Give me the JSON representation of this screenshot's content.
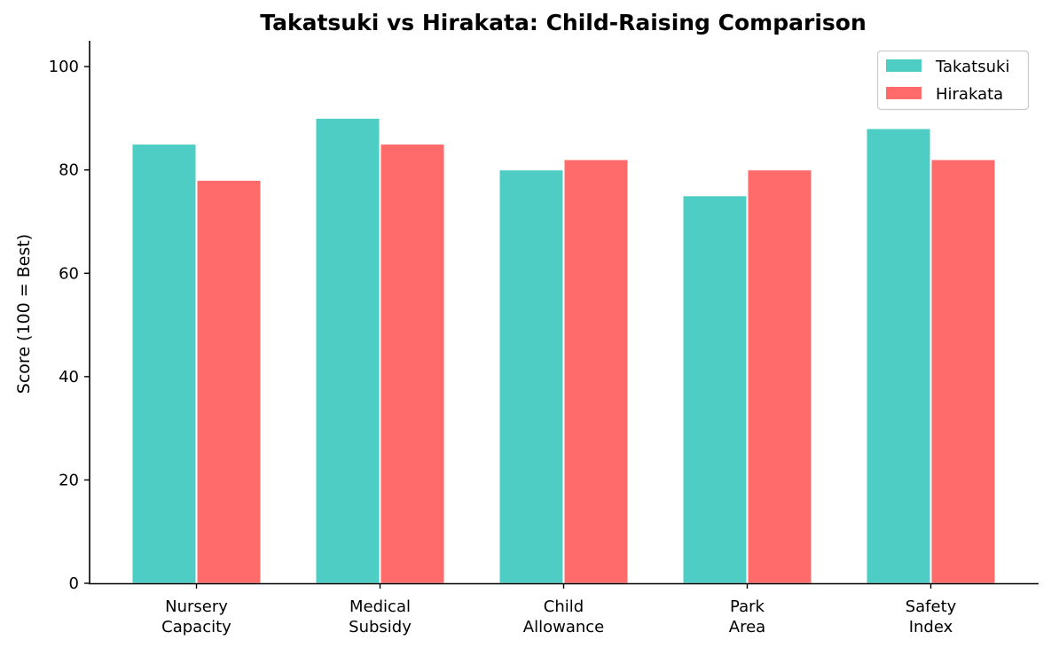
{
  "chart_data": {
    "type": "bar",
    "title": "Takatsuki vs Hirakata: Child-Raising Comparison",
    "xlabel": "",
    "ylabel": "Score (100 = Best)",
    "categories": [
      [
        "Nursery",
        "Capacity"
      ],
      [
        "Medical",
        "Subsidy"
      ],
      [
        "Child",
        "Allowance"
      ],
      [
        "Park",
        "Area"
      ],
      [
        "Safety",
        "Index"
      ]
    ],
    "series": [
      {
        "name": "Takatsuki",
        "color": "#4ECDC4",
        "values": [
          85,
          90,
          80,
          75,
          88
        ]
      },
      {
        "name": "Hirakata",
        "color": "#FF6B6B",
        "values": [
          78,
          85,
          82,
          80,
          82
        ]
      }
    ],
    "ylim": [
      0,
      105
    ],
    "yticks": [
      0,
      20,
      40,
      60,
      80,
      100
    ],
    "grid": false,
    "legend_position": "top-right"
  }
}
